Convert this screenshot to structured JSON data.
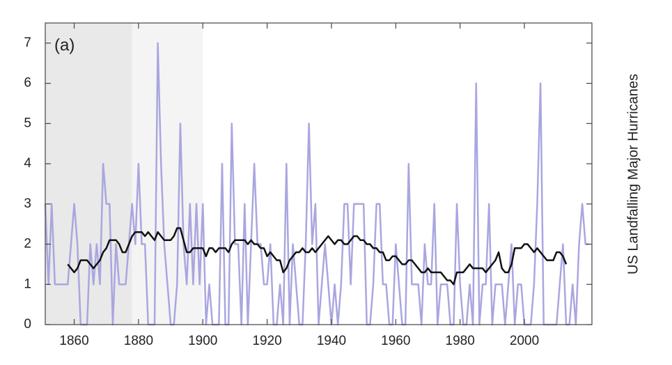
{
  "chart_data": {
    "type": "line",
    "panel_label": "(a)",
    "y_label": "US Landfalling Major Hurricanes",
    "x": [
      1851,
      1852,
      1853,
      1854,
      1855,
      1856,
      1857,
      1858,
      1859,
      1860,
      1861,
      1862,
      1863,
      1864,
      1865,
      1866,
      1867,
      1868,
      1869,
      1870,
      1871,
      1872,
      1873,
      1874,
      1875,
      1876,
      1877,
      1878,
      1879,
      1880,
      1881,
      1882,
      1883,
      1884,
      1885,
      1886,
      1887,
      1888,
      1889,
      1890,
      1891,
      1892,
      1893,
      1894,
      1895,
      1896,
      1897,
      1898,
      1899,
      1900,
      1901,
      1902,
      1903,
      1904,
      1905,
      1906,
      1907,
      1908,
      1909,
      1910,
      1911,
      1912,
      1913,
      1914,
      1915,
      1916,
      1917,
      1918,
      1919,
      1920,
      1921,
      1922,
      1923,
      1924,
      1925,
      1926,
      1927,
      1928,
      1929,
      1930,
      1931,
      1932,
      1933,
      1934,
      1935,
      1936,
      1937,
      1938,
      1939,
      1940,
      1941,
      1942,
      1943,
      1944,
      1945,
      1946,
      1947,
      1948,
      1949,
      1950,
      1951,
      1952,
      1953,
      1954,
      1955,
      1956,
      1957,
      1958,
      1959,
      1960,
      1961,
      1962,
      1963,
      1964,
      1965,
      1966,
      1967,
      1968,
      1969,
      1970,
      1971,
      1972,
      1973,
      1974,
      1975,
      1976,
      1977,
      1978,
      1979,
      1980,
      1981,
      1982,
      1983,
      1984,
      1985,
      1986,
      1987,
      1988,
      1989,
      1990,
      1991,
      1992,
      1993,
      1994,
      1995,
      1996,
      1997,
      1998,
      1999,
      2000,
      2001,
      2002,
      2003,
      2004,
      2005,
      2006,
      2007,
      2008,
      2009,
      2010,
      2011,
      2012,
      2013,
      2014,
      2015,
      2016,
      2017,
      2018,
      2019,
      2020
    ],
    "series": [
      {
        "color": "#a9a6e0",
        "width": 2.5,
        "values": [
          3,
          1,
          3,
          1,
          1,
          1,
          1,
          1,
          2,
          3,
          2,
          0,
          0,
          0,
          2,
          1,
          2,
          1,
          4,
          3,
          3,
          0,
          2,
          1,
          1,
          1,
          2,
          3,
          2,
          4,
          2,
          2,
          0,
          0,
          0,
          7,
          4,
          2,
          1,
          0,
          0,
          1,
          5,
          2,
          1,
          3,
          1,
          3,
          1,
          3,
          0,
          1,
          0,
          0,
          0,
          4,
          0,
          0,
          5,
          2,
          2,
          0,
          3,
          0,
          2,
          4,
          2,
          2,
          1,
          1,
          2,
          0,
          0,
          1,
          0,
          4,
          0,
          2,
          1,
          0,
          0,
          2,
          5,
          2,
          3,
          0,
          1,
          2,
          1,
          0,
          1,
          0,
          1,
          3,
          3,
          1,
          3,
          3,
          3,
          3,
          0,
          0,
          1,
          3,
          3,
          1,
          1,
          0,
          0,
          2,
          1,
          0,
          0,
          4,
          1,
          1,
          1,
          0,
          2,
          1,
          1,
          3,
          0,
          1,
          1,
          1,
          0,
          0,
          3,
          1,
          0,
          0,
          1,
          0,
          6,
          0,
          1,
          1,
          3,
          0,
          1,
          1,
          1,
          0,
          1,
          2,
          0,
          1,
          1,
          0,
          0,
          0,
          1,
          3,
          6,
          0,
          0,
          0,
          0,
          0,
          1,
          2,
          0,
          0,
          1,
          0,
          2,
          3,
          2,
          2
        ]
      },
      {
        "color": "#111111",
        "width": 2.5,
        "values": [
          null,
          null,
          null,
          null,
          null,
          null,
          null,
          1.5,
          1.4,
          1.3,
          1.4,
          1.6,
          1.6,
          1.6,
          1.5,
          1.4,
          1.5,
          1.6,
          1.8,
          1.9,
          2.1,
          2.1,
          2.1,
          2.0,
          1.8,
          1.8,
          2.0,
          2.2,
          2.3,
          2.3,
          2.3,
          2.2,
          2.3,
          2.2,
          2.1,
          2.3,
          2.2,
          2.1,
          2.1,
          2.1,
          2.2,
          2.4,
          2.4,
          2.1,
          1.8,
          1.8,
          1.9,
          1.9,
          1.9,
          1.9,
          1.7,
          1.9,
          1.9,
          1.8,
          1.9,
          1.9,
          1.9,
          1.8,
          2.0,
          2.1,
          2.1,
          2.1,
          2.1,
          2.0,
          2.1,
          2.0,
          2.0,
          1.9,
          1.9,
          1.7,
          1.8,
          1.7,
          1.6,
          1.6,
          1.3,
          1.4,
          1.6,
          1.7,
          1.8,
          1.8,
          1.9,
          1.8,
          1.8,
          1.9,
          1.8,
          1.9,
          2.0,
          2.1,
          2.2,
          2.1,
          2.0,
          2.1,
          2.1,
          2.0,
          2.0,
          2.1,
          2.2,
          2.2,
          2.1,
          2.1,
          2.0,
          2.0,
          1.9,
          1.9,
          1.8,
          1.8,
          1.6,
          1.6,
          1.7,
          1.7,
          1.6,
          1.5,
          1.5,
          1.6,
          1.6,
          1.5,
          1.4,
          1.3,
          1.3,
          1.4,
          1.3,
          1.3,
          1.3,
          1.3,
          1.2,
          1.1,
          1.1,
          1.0,
          1.3,
          1.3,
          1.3,
          1.4,
          1.5,
          1.4,
          1.4,
          1.4,
          1.4,
          1.3,
          1.4,
          1.5,
          1.6,
          1.8,
          1.4,
          1.3,
          1.3,
          1.5,
          1.9,
          1.9,
          1.9,
          2.0,
          2.0,
          1.9,
          1.8,
          1.9,
          1.8,
          1.7,
          1.6,
          1.6,
          1.6,
          1.8,
          1.8,
          1.7,
          1.5,
          null,
          null,
          null,
          null,
          null,
          null,
          null
        ]
      }
    ],
    "shading": [
      {
        "from": 1851,
        "to": 1878,
        "color": "#e9e9e9"
      },
      {
        "from": 1878,
        "to": 1900,
        "color": "#f4f4f4"
      }
    ],
    "xlim": [
      1851,
      2021
    ],
    "ylim": [
      0,
      7.5
    ],
    "xticks": [
      1860,
      1880,
      1900,
      1920,
      1940,
      1960,
      1980,
      2000
    ],
    "yticks": [
      0,
      1,
      2,
      3,
      4,
      5,
      6,
      7
    ]
  }
}
